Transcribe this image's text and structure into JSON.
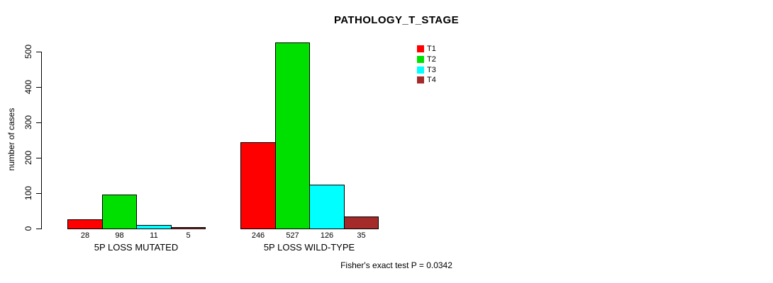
{
  "chart_data": {
    "type": "bar",
    "title": "PATHOLOGY_T_STAGE",
    "ylabel": "number of cases",
    "xlabel": "",
    "ylim": [
      0,
      500
    ],
    "yticks": [
      0,
      100,
      200,
      300,
      400,
      500
    ],
    "grid": false,
    "legend_position": "top-center",
    "categories": [
      "5P LOSS MUTATED",
      "5P LOSS WILD-TYPE"
    ],
    "series": [
      {
        "name": "T1",
        "color": "#FF0000",
        "values": [
          28,
          246
        ]
      },
      {
        "name": "T2",
        "color": "#00E000",
        "values": [
          98,
          527
        ]
      },
      {
        "name": "T3",
        "color": "#00FFFF",
        "values": [
          11,
          126
        ]
      },
      {
        "name": "T4",
        "color": "#A52A2A",
        "values": [
          5,
          35
        ]
      }
    ],
    "bar_value_labels": [
      [
        28,
        98,
        11,
        5
      ],
      [
        246,
        527,
        126,
        35
      ]
    ],
    "footnote": "Fisher's exact test P = 0.0342"
  }
}
